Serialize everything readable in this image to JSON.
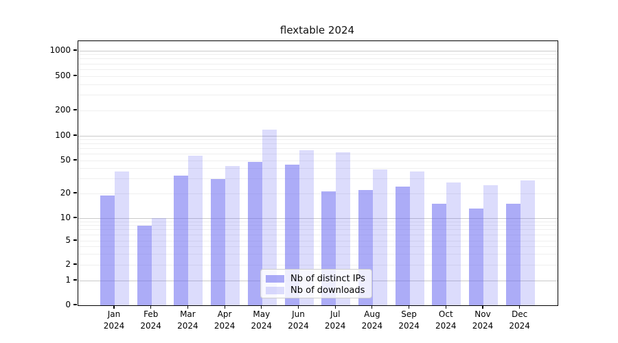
{
  "chart_data": {
    "type": "bar",
    "title": "flextable 2024",
    "categories": [
      "Jan",
      "Feb",
      "Mar",
      "Apr",
      "May",
      "Jun",
      "Jul",
      "Aug",
      "Sep",
      "Oct",
      "Nov",
      "Dec"
    ],
    "x_tick_second_line": "2024",
    "series": [
      {
        "name": "Nb of distinct IPs",
        "color": "rgba(104,104,241,0.55)",
        "values": [
          19,
          8,
          33,
          30,
          48,
          45,
          21,
          22,
          24,
          15,
          13,
          15
        ]
      },
      {
        "name": "Nb of downloads",
        "color": "rgba(104,104,241,0.23)",
        "values": [
          37,
          10,
          57,
          43,
          118,
          67,
          63,
          39,
          37,
          27,
          25,
          29
        ]
      }
    ],
    "y_axis": {
      "scale": "symlog",
      "ylim": [
        0,
        1400
      ],
      "tick_values": [
        0,
        1,
        2,
        5,
        10,
        20,
        50,
        100,
        200,
        500,
        1000
      ],
      "tick_labels": [
        "0",
        "1",
        "2",
        "5",
        "10",
        "20",
        "50",
        "100",
        "200",
        "500",
        "1000"
      ],
      "major_gridlines": [
        1,
        10,
        100,
        1000
      ],
      "minor_gridlines": [
        2,
        3,
        4,
        5,
        6,
        7,
        8,
        9,
        20,
        30,
        40,
        50,
        60,
        70,
        80,
        90,
        200,
        300,
        400,
        500,
        600,
        700,
        800,
        900
      ]
    },
    "legend": {
      "position": "lower center-left inside plot",
      "entries": [
        "Nb of distinct IPs",
        "Nb of downloads"
      ]
    },
    "colors": {
      "grid_major": "#c9c9c9",
      "grid_minor": "#efefef",
      "spine": "#000000",
      "background": "#ffffff",
      "bar_base": "#6868f1"
    }
  }
}
